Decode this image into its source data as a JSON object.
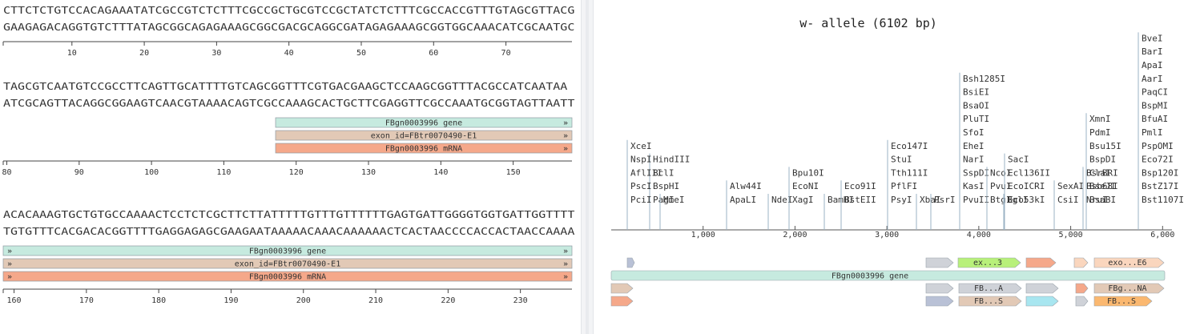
{
  "sequence_view": {
    "rows": [
      {
        "top": "CTTCTCTGTCCACAGAAATATCGCCGTCTCTTTCGCCGCTGCGTCCGCTATCTCTTTCGCCACCGTTTGTAGCGTTACG",
        "bottom": "GAAGAGACAGGTGTCTTTATAGCGGCAGAGAAAGCGGCGACGCAGGCGATAGAGAAAGCGGTGGCAAACATCGCAATGC",
        "ticks": [
          "10",
          "20",
          "30",
          "40",
          "50",
          "60",
          "70"
        ],
        "features": []
      },
      {
        "top": "TAGCGTCAATGTCCGCCTTCAGTTGCATTTTGTCAGCGGTTTCGTGACGAAGCTCCAAGCGGTTTACGCCATCAATAA",
        "bottom": "ATCGCAGTTACAGGCGGAAGTCAACGTAAAACAGTCGCCAAAGCACTGCTTCGAGGTTCGCCAAATGCGGTAGTTAATT",
        "ticks": [
          "80",
          "90",
          "100",
          "110",
          "120",
          "130",
          "140",
          "150"
        ],
        "features": [
          {
            "label": "FBgn0003996 gene",
            "color": "#c6eadf"
          },
          {
            "label": "exon_id=FBtr0070490-E1",
            "color": "#e2c9b6"
          },
          {
            "label": "FBgn0003996 mRNA",
            "color": "#f5a88a"
          }
        ]
      },
      {
        "top": "ACACAAAGTGCTGTGCCAAAACTCCTCTCGCTTCTTATTTTTGTTTGTTTTTTGAGTGATTGGGGTGGTGATTGGTTTT",
        "bottom": "TGTGTTTCACGACACGGTTTTGAGGAGAGCGAAGAATAAAAACAAACAAAAAACTCACTAACCCCACCACTAACCAAAA",
        "ticks": [
          "160",
          "170",
          "180",
          "190",
          "200",
          "210",
          "220",
          "230"
        ],
        "features": [
          {
            "label": "FBgn0003996 gene",
            "color": "#c6eadf"
          },
          {
            "label": "exon_id=FBtr0070490-E1",
            "color": "#e2c9b6"
          },
          {
            "label": "FBgn0003996 mRNA",
            "color": "#f5a88a"
          }
        ]
      }
    ]
  },
  "map_view": {
    "title": "w- allele (6102 bp)",
    "axis_ticks": [
      "1,000",
      "2,000",
      "3,000",
      "4,000",
      "5,000",
      "6,000"
    ],
    "enzymes": [
      [
        "HindIII",
        "BclI",
        "BspHI",
        "PagI"
      ],
      [
        "XceI",
        "NspI",
        "AflIII",
        "PscI",
        "PciI"
      ],
      [
        "MmeI"
      ],
      [
        "Alw44I",
        "ApaLI"
      ],
      [
        "NdeI"
      ],
      [
        "Bpu10I",
        "EcoNI",
        "XagI"
      ],
      [
        "BamHI"
      ],
      [
        "Eco91I",
        "BstEII"
      ],
      [
        "Eco147I",
        "StuI",
        "Tth111I",
        "PflFI",
        "PsyI"
      ],
      [
        "XbaI"
      ],
      [
        "PsrI"
      ],
      [
        "Bsh1285I",
        "BsiEI",
        "BsaOI",
        "PluTI",
        "SfoI",
        "EheI",
        "NarI",
        "SspDI",
        "KasI",
        "PvuII"
      ],
      [
        "NcoI",
        "PvuI",
        "BtgI"
      ],
      [
        "BglI"
      ],
      [
        "SacI",
        "Ecl136II",
        "EcoICRI",
        "Eco53kI"
      ],
      [
        "SexAI",
        "CsiI"
      ],
      [
        "BsrBRI",
        "Bsb68I",
        "NruI"
      ],
      [
        "XmnI",
        "PdmI",
        "Bsu15I",
        "BspDI",
        "ClaI",
        "BseJI",
        "BsaBI"
      ],
      [
        "BveI",
        "BarI",
        "ApaI",
        "AarI",
        "PaqCI",
        "BspMI",
        "BfuAI",
        "PmlI",
        "PspOMI",
        "Eco72I",
        "Bsp120I",
        "BstZ17I",
        "Bst1107I"
      ]
    ],
    "features": {
      "exon3": "ex...3",
      "exonE6": "exo...E6",
      "gene": "FBgn0003996 gene",
      "fb_a": "FB...A",
      "fbg_na": "FBg...NA",
      "fb_s1": "FB...S",
      "fb_s2": "FB...S"
    },
    "colors": {
      "gene": "#c6eadf",
      "exon": "#e2c9b6",
      "mrna": "#f5a88a",
      "green": "#b8f07a",
      "gray": "#cfd2d8",
      "cyan": "#a8e6f0",
      "blue_gray": "#b9c1d6",
      "orange": "#fbb870",
      "peach": "#fad6be"
    }
  }
}
